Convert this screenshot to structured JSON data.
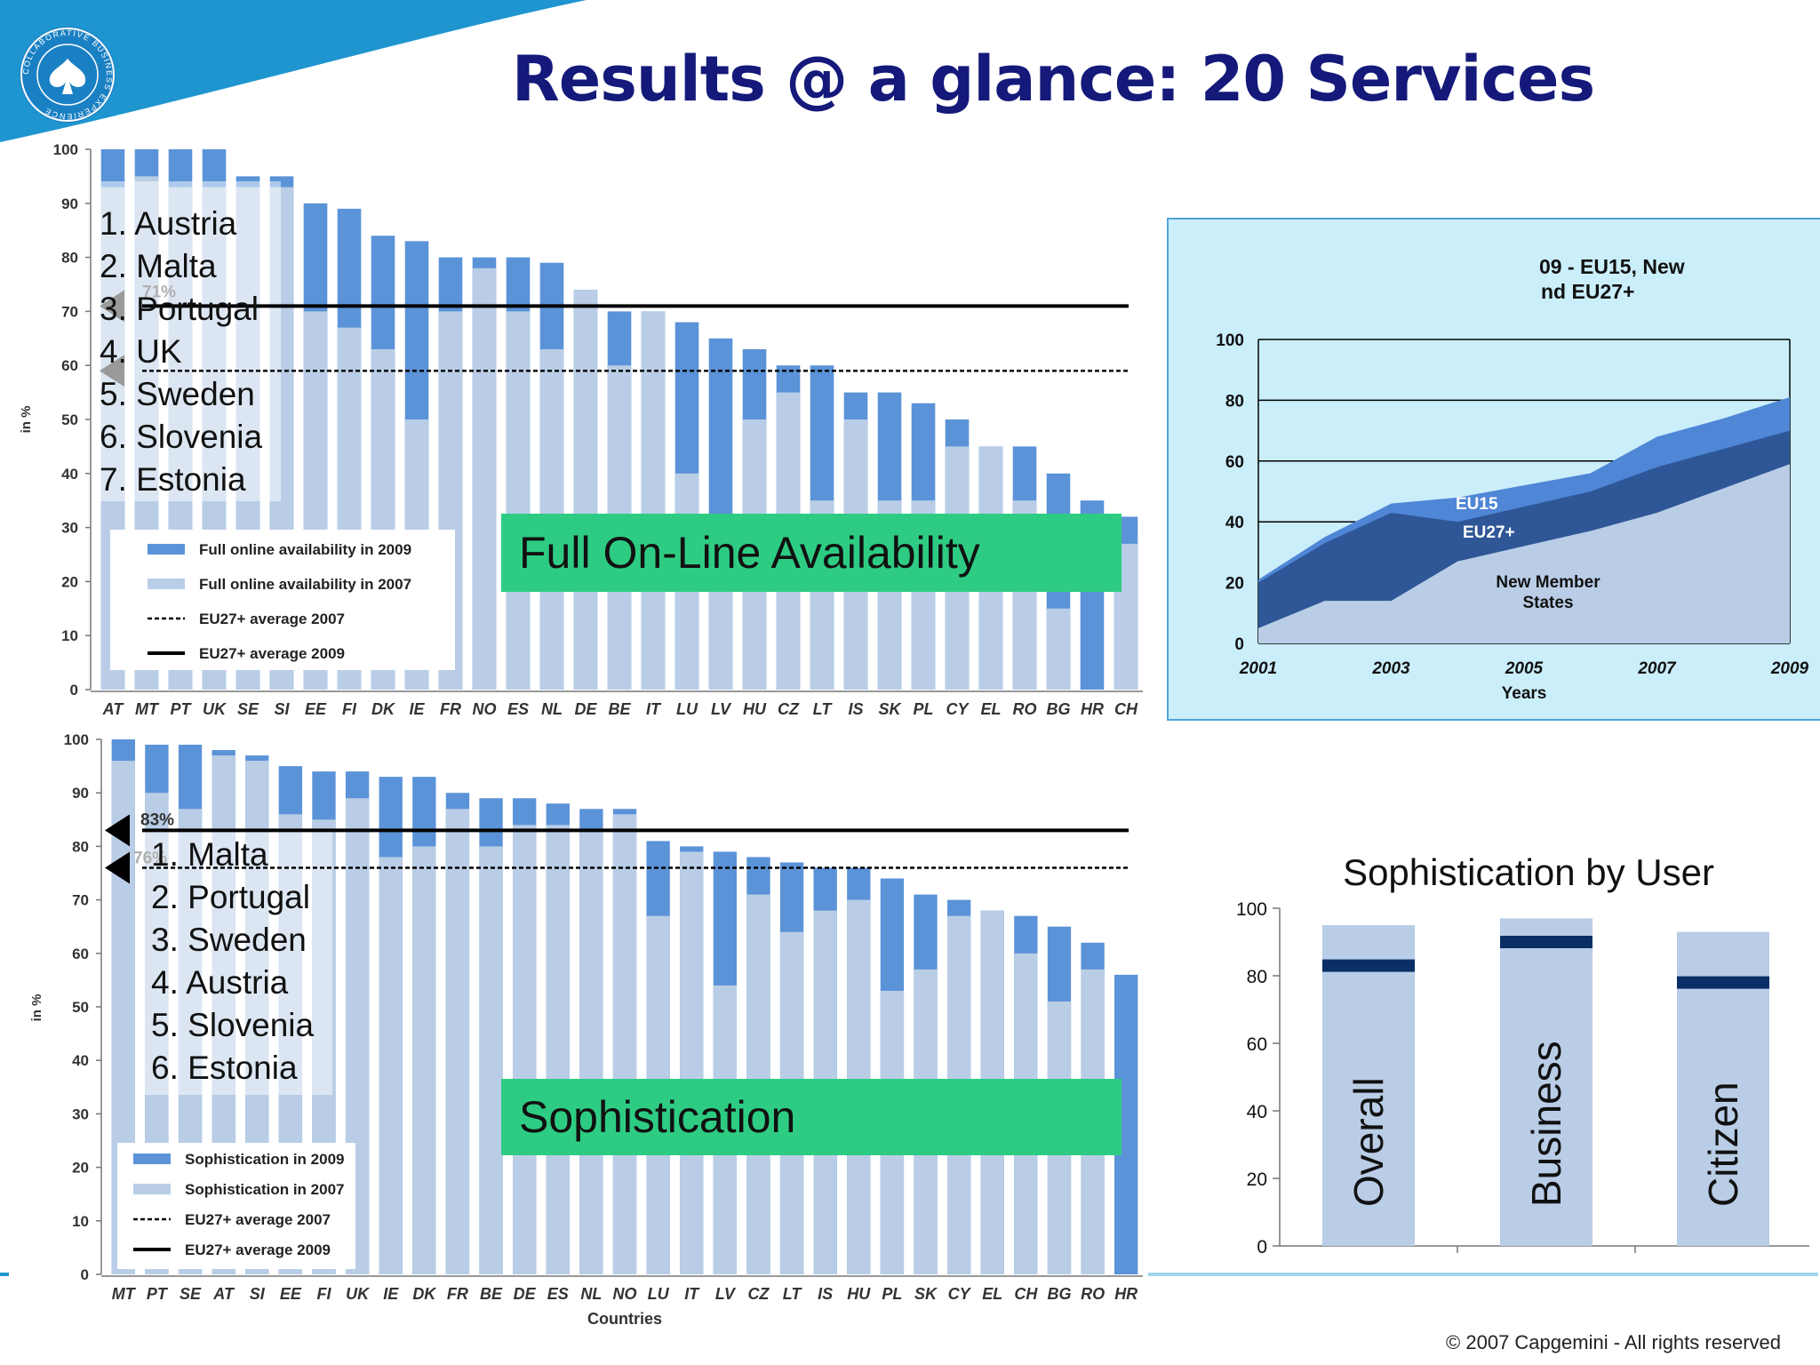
{
  "page": {
    "title": "Results @ a glance: 20 Services",
    "copyright": "© 2007 Capgemini - All rights reserved"
  },
  "logo": {
    "ring_text": "COLLABORATIVE BUSINESS EXPERIENCE"
  },
  "colors": {
    "dark_bar": "#5b93d8",
    "light_bar": "#b9cde6",
    "title": "#14197a",
    "banner": "#1f95cf",
    "green_box": "#2ecc83",
    "panel_bg": "#cbeefb"
  },
  "chart_data": [
    {
      "type": "bar",
      "id": "availability",
      "ylabel": "in %",
      "ylim": [
        0,
        100
      ],
      "yticks": [
        0,
        10,
        20,
        30,
        40,
        50,
        60,
        70,
        80,
        90,
        100
      ],
      "categories": [
        "AT",
        "MT",
        "PT",
        "UK",
        "SE",
        "SI",
        "EE",
        "FI",
        "DK",
        "IE",
        "FR",
        "NO",
        "ES",
        "NL",
        "DE",
        "BE",
        "IT",
        "LU",
        "LV",
        "HU",
        "CZ",
        "LT",
        "IS",
        "SK",
        "PL",
        "CY",
        "EL",
        "RO",
        "BG",
        "HR",
        "CH"
      ],
      "series": [
        {
          "name": "Full online availability in 2009",
          "values": [
            100,
            100,
            100,
            100,
            95,
            95,
            90,
            89,
            84,
            83,
            80,
            80,
            80,
            79,
            74,
            70,
            70,
            68,
            65,
            63,
            60,
            60,
            55,
            55,
            53,
            50,
            45,
            45,
            40,
            35,
            32
          ]
        },
        {
          "name": "Full online availability in 2007",
          "values": [
            93,
            95,
            93,
            93,
            93,
            93,
            70,
            67,
            63,
            50,
            70,
            78,
            70,
            63,
            74,
            60,
            70,
            40,
            30,
            50,
            55,
            35,
            50,
            35,
            35,
            45,
            45,
            35,
            15,
            0,
            27
          ]
        }
      ],
      "lines": [
        {
          "name": "EU27+ average 2007",
          "value": 59,
          "style": "dashed"
        },
        {
          "name": "EU27+ average 2009",
          "value": 71,
          "style": "solid"
        }
      ],
      "annotations": [
        "71%",
        "1. Austria",
        "2. Malta",
        "3. Portugal",
        "4. UK",
        "5. Sweden",
        "6. Slovenia",
        "7. Estonia"
      ],
      "label_box": "Full On-Line Availability"
    },
    {
      "type": "area",
      "id": "trend",
      "title_lines": [
        "09 - EU15, New",
        "nd EU27+"
      ],
      "xlabel": "Years",
      "x": [
        2001,
        2002,
        2003,
        2004,
        2005,
        2006,
        2007,
        2008,
        2009
      ],
      "xtick_labels": [
        "2001",
        "2003",
        "2005",
        "2007",
        "2009"
      ],
      "ylim": [
        0,
        100
      ],
      "yticks": [
        0,
        20,
        40,
        60,
        80,
        100
      ],
      "series": [
        {
          "name": "EU15",
          "values": [
            21,
            35,
            46,
            48,
            52,
            56,
            68,
            74,
            81
          ]
        },
        {
          "name": "EU27+",
          "values": [
            20,
            33,
            43,
            40,
            45,
            50,
            58,
            64,
            70
          ]
        },
        {
          "name": "New Member States",
          "values": [
            5,
            14,
            14,
            27,
            32,
            37,
            43,
            51,
            59
          ]
        }
      ],
      "series_labels": [
        "EU15",
        "EU27+",
        "New Member",
        "States"
      ]
    },
    {
      "type": "bar",
      "id": "sophistication",
      "ylabel": "in %",
      "xlabel": "Countries",
      "ylim": [
        0,
        100
      ],
      "yticks": [
        0,
        10,
        20,
        30,
        40,
        50,
        60,
        70,
        80,
        90,
        100
      ],
      "categories": [
        "MT",
        "PT",
        "SE",
        "AT",
        "SI",
        "EE",
        "FI",
        "UK",
        "IE",
        "DK",
        "FR",
        "BE",
        "DE",
        "ES",
        "NL",
        "NO",
        "LU",
        "IT",
        "LV",
        "CZ",
        "LT",
        "IS",
        "HU",
        "PL",
        "SK",
        "CY",
        "EL",
        "CH",
        "BG",
        "RO",
        "HR"
      ],
      "series": [
        {
          "name": "Sophistication in 2009",
          "values": [
            100,
            99,
            99,
            98,
            97,
            95,
            94,
            94,
            93,
            93,
            90,
            89,
            89,
            88,
            87,
            87,
            81,
            80,
            79,
            78,
            77,
            76,
            76,
            74,
            71,
            70,
            68,
            67,
            65,
            62,
            56
          ]
        },
        {
          "name": "Sophistication in 2007",
          "values": [
            96,
            90,
            87,
            97,
            96,
            86,
            85,
            89,
            78,
            80,
            87,
            80,
            84,
            84,
            83,
            86,
            67,
            79,
            54,
            71,
            64,
            68,
            70,
            53,
            57,
            67,
            68,
            60,
            51,
            57,
            0
          ]
        }
      ],
      "lines": [
        {
          "name": "EU27+ average 2007",
          "value": 76,
          "style": "dashed"
        },
        {
          "name": "EU27+ average 2009",
          "value": 83,
          "style": "solid"
        }
      ],
      "annotations": [
        "83%",
        "76%",
        "1. Malta",
        "2. Portugal",
        "3. Sweden",
        "4. Austria",
        "5. Slovenia",
        "6. Estonia"
      ],
      "label_box": "Sophistication"
    },
    {
      "type": "bar",
      "id": "by-user",
      "title": "Sophistication by User",
      "ylim": [
        0,
        100
      ],
      "yticks": [
        0,
        20,
        40,
        60,
        80,
        100
      ],
      "categories": [
        "Overall",
        "Business",
        "Citizen"
      ],
      "series": [
        {
          "name": "bar",
          "values": [
            95,
            97,
            93
          ]
        },
        {
          "name": "marker",
          "values": [
            83,
            90,
            78
          ]
        }
      ]
    }
  ]
}
